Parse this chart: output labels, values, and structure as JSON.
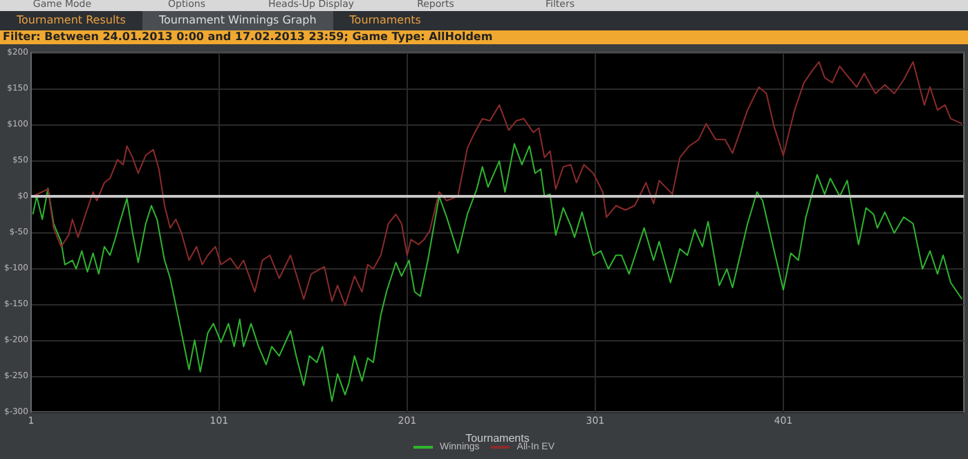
{
  "chart_data": {
    "type": "line",
    "title": "Filter: Between 24.01.2013 0:00 and 17.02.2013 23:59; Game Type: AllHoldem",
    "annotations": [
      "Game Mode",
      "Options",
      "Heads-Up Display",
      "Reports",
      "Filters",
      "Tournament Results",
      "Tournament Winnings Graph",
      "Tournaments"
    ],
    "xlabel": "Tournaments",
    "xlim": [
      1,
      497
    ],
    "xticks": [
      1,
      101,
      201,
      301,
      401
    ],
    "ylim": [
      -300,
      200
    ],
    "yticks": [
      {
        "value": -300,
        "label": "$-300"
      },
      {
        "value": -250,
        "label": "$-250"
      },
      {
        "value": -200,
        "label": "$-200"
      },
      {
        "value": -150,
        "label": "$-150"
      },
      {
        "value": -100,
        "label": "$-100"
      },
      {
        "value": -50,
        "label": "$-50"
      },
      {
        "value": 0,
        "label": "$0"
      },
      {
        "value": 50,
        "label": "$50"
      },
      {
        "value": 100,
        "label": "$100"
      },
      {
        "value": 150,
        "label": "$150"
      },
      {
        "value": 200,
        "label": "$200"
      }
    ],
    "grid": true,
    "legend": "bottom",
    "marker": "none",
    "line_style": "solid",
    "ref_lines": [
      {
        "axis": "y",
        "value": 0,
        "color": "#c8c8c8"
      }
    ],
    "series": [
      {
        "name": "Winnings",
        "color": "#2fb52f",
        "x": [
          2,
          4,
          7,
          10,
          13,
          17,
          19,
          23,
          25,
          28,
          31,
          34,
          37,
          40,
          43,
          46,
          48,
          52,
          55,
          58,
          62,
          65,
          68,
          72,
          75,
          80,
          85,
          88,
          91,
          95,
          98,
          102,
          106,
          109,
          112,
          114,
          118,
          122,
          126,
          129,
          133,
          139,
          142,
          146,
          149,
          153,
          156,
          161,
          164,
          168,
          170,
          173,
          177,
          180,
          183,
          187,
          190,
          195,
          198,
          202,
          205,
          208,
          212,
          218,
          222,
          228,
          233,
          238,
          241,
          244,
          250,
          253,
          258,
          262,
          266,
          269,
          272,
          274,
          277,
          280,
          284,
          288,
          290,
          294,
          300,
          304,
          308,
          312,
          315,
          319,
          327,
          332,
          335,
          341,
          346,
          350,
          354,
          358,
          361,
          367,
          371,
          374,
          382,
          387,
          390,
          395,
          401,
          405,
          409,
          413,
          419,
          423,
          426,
          431,
          435,
          441,
          445,
          449,
          451,
          455,
          460,
          465,
          470,
          475,
          479,
          483,
          486,
          490,
          496
        ],
        "values": [
          -25,
          0,
          -32,
          11,
          -38,
          -63,
          -95,
          -89,
          -101,
          -76,
          -105,
          -79,
          -108,
          -70,
          -82,
          -57,
          -38,
          -3,
          -51,
          -92,
          -38,
          -13,
          -32,
          -89,
          -114,
          -177,
          -241,
          -200,
          -244,
          -190,
          -177,
          -203,
          -177,
          -209,
          -171,
          -209,
          -177,
          -209,
          -234,
          -209,
          -222,
          -187,
          -222,
          -263,
          -222,
          -231,
          -209,
          -285,
          -247,
          -276,
          -260,
          -222,
          -257,
          -225,
          -231,
          -165,
          -133,
          -92,
          -111,
          -89,
          -133,
          -139,
          -89,
          0,
          -29,
          -79,
          -25,
          10,
          41,
          13,
          49,
          6,
          73,
          44,
          70,
          32,
          38,
          0,
          3,
          -54,
          -16,
          -41,
          -57,
          -22,
          -82,
          -76,
          -101,
          -82,
          -82,
          -108,
          -44,
          -89,
          -63,
          -120,
          -73,
          -82,
          -46,
          -70,
          -35,
          -124,
          -101,
          -127,
          -38,
          6,
          -6,
          -63,
          -130,
          -79,
          -89,
          -29,
          30,
          3,
          25,
          0,
          22,
          -67,
          -16,
          -25,
          -44,
          -22,
          -51,
          -29,
          -38,
          -101,
          -76,
          -108,
          -82,
          -120,
          -143
        ]
      },
      {
        "name": "All-In EV",
        "color": "#8b2b2b",
        "x": [
          2,
          10,
          13,
          17,
          21,
          23,
          26,
          30,
          34,
          36,
          40,
          43,
          47,
          50,
          52,
          55,
          58,
          62,
          66,
          69,
          72,
          75,
          78,
          81,
          85,
          89,
          92,
          95,
          99,
          102,
          107,
          111,
          114,
          120,
          124,
          128,
          133,
          139,
          146,
          150,
          157,
          161,
          164,
          168,
          173,
          177,
          180,
          183,
          187,
          191,
          195,
          198,
          201,
          203,
          207,
          210,
          213,
          218,
          222,
          228,
          233,
          237,
          241,
          245,
          250,
          255,
          259,
          263,
          268,
          271,
          274,
          277,
          280,
          284,
          288,
          291,
          295,
          300,
          305,
          307,
          312,
          317,
          322,
          328,
          332,
          335,
          342,
          346,
          351,
          356,
          360,
          365,
          370,
          374,
          382,
          388,
          392,
          396,
          401,
          407,
          412,
          417,
          420,
          423,
          427,
          431,
          434,
          440,
          444,
          450,
          455,
          460,
          465,
          470,
          476,
          479,
          483,
          487,
          490,
          496
        ],
        "values": [
          0,
          10,
          -44,
          -70,
          -54,
          -32,
          -57,
          -25,
          6,
          -6,
          19,
          25,
          51,
          44,
          70,
          54,
          32,
          57,
          65,
          38,
          -13,
          -44,
          -32,
          -51,
          -89,
          -70,
          -95,
          -82,
          -70,
          -95,
          -86,
          -101,
          -89,
          -133,
          -89,
          -82,
          -114,
          -82,
          -143,
          -108,
          -98,
          -146,
          -124,
          -152,
          -111,
          -133,
          -95,
          -101,
          -82,
          -38,
          -25,
          -38,
          -82,
          -60,
          -67,
          -60,
          -48,
          6,
          -6,
          0,
          67,
          89,
          108,
          105,
          127,
          92,
          105,
          108,
          89,
          95,
          54,
          63,
          10,
          41,
          44,
          19,
          44,
          32,
          6,
          -29,
          -13,
          -19,
          -13,
          19,
          -10,
          22,
          3,
          54,
          70,
          79,
          101,
          79,
          79,
          60,
          120,
          152,
          143,
          98,
          57,
          120,
          158,
          177,
          187,
          165,
          158,
          181,
          171,
          152,
          171,
          143,
          155,
          143,
          162,
          187,
          127,
          152,
          120,
          127,
          108,
          101
        ]
      }
    ]
  }
}
